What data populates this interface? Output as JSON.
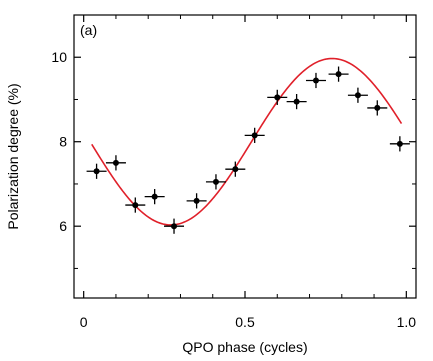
{
  "chart_data": {
    "type": "scatter",
    "panel_label": "(a)",
    "xlabel": "QPO phase (cycles)",
    "ylabel": "Polarization degree (%)",
    "xlim": [
      -0.03,
      1.03
    ],
    "ylim": [
      4.3,
      11.0
    ],
    "xticks": [
      0,
      0.5,
      1.0
    ],
    "xtick_labels": [
      "0",
      "0.5",
      "1.0"
    ],
    "yticks": [
      6,
      8,
      10
    ],
    "ytick_labels": [
      "6",
      "8",
      "10"
    ],
    "x_minor_ticks": [
      0.1,
      0.2,
      0.3,
      0.4,
      0.6,
      0.7,
      0.8,
      0.9
    ],
    "y_minor_ticks": [
      5,
      7,
      9
    ],
    "grid": false,
    "colors": {
      "points": "#000000",
      "model": "#e0202a",
      "axes": "#000000"
    },
    "series": [
      {
        "kind": "points",
        "x": [
          0.04,
          0.1,
          0.16,
          0.22,
          0.28,
          0.35,
          0.41,
          0.47,
          0.53,
          0.6,
          0.66,
          0.72,
          0.79,
          0.85,
          0.91,
          0.98
        ],
        "y": [
          7.3,
          7.5,
          6.5,
          6.7,
          6.0,
          6.6,
          7.05,
          7.35,
          8.15,
          9.05,
          8.95,
          9.45,
          9.6,
          9.1,
          8.8,
          7.95
        ],
        "xerr": [
          0.031,
          0.031,
          0.031,
          0.031,
          0.031,
          0.031,
          0.031,
          0.031,
          0.031,
          0.031,
          0.031,
          0.031,
          0.031,
          0.031,
          0.031,
          0.031
        ],
        "yerr": [
          0.18,
          0.18,
          0.18,
          0.18,
          0.18,
          0.18,
          0.18,
          0.18,
          0.18,
          0.18,
          0.18,
          0.18,
          0.18,
          0.18,
          0.18,
          0.18
        ]
      },
      {
        "kind": "model",
        "function": "sinusoid",
        "mean": 8.0,
        "amplitude": 1.97,
        "peak_phase": 0.77,
        "x_range": [
          0.025,
          0.985
        ]
      }
    ]
  }
}
